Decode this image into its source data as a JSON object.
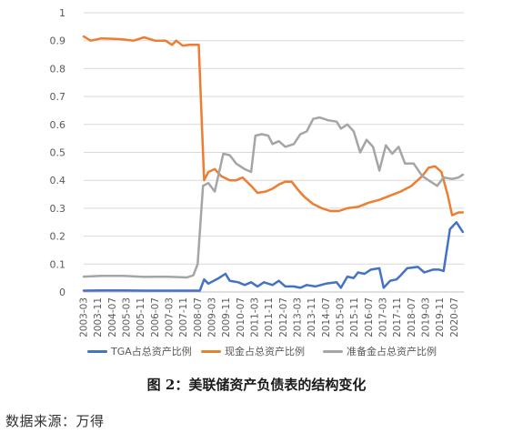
{
  "chart_data": {
    "type": "line",
    "title": "",
    "xlabel": "",
    "ylabel": "",
    "ylim": [
      0,
      1
    ],
    "yticks": [
      "0",
      "0.1",
      "0.2",
      "0.3",
      "0.4",
      "0.5",
      "0.6",
      "0.7",
      "0.8",
      "0.9",
      "1"
    ],
    "grid": true,
    "legend_position": "bottom",
    "x_tick_labels": [
      "2003-03",
      "2003-11",
      "2004-07",
      "2005-03",
      "2005-11",
      "2006-07",
      "2007-03",
      "2007-11",
      "2008-07",
      "2009-03",
      "2009-11",
      "2010-07",
      "2011-03",
      "2011-11",
      "2012-07",
      "2013-03",
      "2013-11",
      "2014-07",
      "2015-03",
      "2015-11",
      "2016-07",
      "2017-03",
      "2017-11",
      "2018-07",
      "2019-03",
      "2019-11",
      "2020-07"
    ],
    "series": [
      {
        "name": "TGA占总资产比例",
        "color": "#4472C4",
        "points": [
          [
            2003.17,
            0.005
          ],
          [
            2004.0,
            0.006
          ],
          [
            2005.0,
            0.006
          ],
          [
            2006.0,
            0.005
          ],
          [
            2007.0,
            0.005
          ],
          [
            2008.0,
            0.005
          ],
          [
            2008.6,
            0.005
          ],
          [
            2008.8,
            0.045
          ],
          [
            2009.0,
            0.03
          ],
          [
            2009.5,
            0.05
          ],
          [
            2009.8,
            0.065
          ],
          [
            2010.0,
            0.04
          ],
          [
            2010.4,
            0.035
          ],
          [
            2010.7,
            0.025
          ],
          [
            2011.0,
            0.035
          ],
          [
            2011.3,
            0.02
          ],
          [
            2011.6,
            0.035
          ],
          [
            2012.0,
            0.025
          ],
          [
            2012.3,
            0.04
          ],
          [
            2012.6,
            0.02
          ],
          [
            2013.0,
            0.02
          ],
          [
            2013.3,
            0.015
          ],
          [
            2013.6,
            0.025
          ],
          [
            2014.0,
            0.02
          ],
          [
            2014.5,
            0.03
          ],
          [
            2015.0,
            0.035
          ],
          [
            2015.2,
            0.015
          ],
          [
            2015.5,
            0.055
          ],
          [
            2015.8,
            0.05
          ],
          [
            2016.0,
            0.07
          ],
          [
            2016.3,
            0.065
          ],
          [
            2016.6,
            0.08
          ],
          [
            2017.0,
            0.085
          ],
          [
            2017.2,
            0.015
          ],
          [
            2017.5,
            0.04
          ],
          [
            2017.8,
            0.045
          ],
          [
            2018.0,
            0.06
          ],
          [
            2018.3,
            0.085
          ],
          [
            2018.8,
            0.09
          ],
          [
            2019.1,
            0.07
          ],
          [
            2019.5,
            0.08
          ],
          [
            2019.8,
            0.08
          ],
          [
            2020.0,
            0.075
          ],
          [
            2020.3,
            0.225
          ],
          [
            2020.6,
            0.25
          ],
          [
            2020.9,
            0.215
          ]
        ]
      },
      {
        "name": "现金占总资产比例",
        "color": "#ED7D31",
        "points": [
          [
            2003.17,
            0.915
          ],
          [
            2003.5,
            0.9
          ],
          [
            2004.0,
            0.908
          ],
          [
            2004.5,
            0.907
          ],
          [
            2005.0,
            0.905
          ],
          [
            2005.5,
            0.9
          ],
          [
            2006.0,
            0.912
          ],
          [
            2006.5,
            0.9
          ],
          [
            2007.0,
            0.9
          ],
          [
            2007.3,
            0.885
          ],
          [
            2007.5,
            0.9
          ],
          [
            2007.8,
            0.882
          ],
          [
            2008.1,
            0.885
          ],
          [
            2008.55,
            0.885
          ],
          [
            2008.8,
            0.4
          ],
          [
            2009.0,
            0.43
          ],
          [
            2009.3,
            0.44
          ],
          [
            2009.6,
            0.415
          ],
          [
            2010.0,
            0.4
          ],
          [
            2010.3,
            0.4
          ],
          [
            2010.6,
            0.41
          ],
          [
            2011.0,
            0.38
          ],
          [
            2011.3,
            0.355
          ],
          [
            2011.7,
            0.36
          ],
          [
            2012.0,
            0.37
          ],
          [
            2012.3,
            0.385
          ],
          [
            2012.6,
            0.395
          ],
          [
            2012.9,
            0.395
          ],
          [
            2013.2,
            0.365
          ],
          [
            2013.5,
            0.34
          ],
          [
            2013.9,
            0.315
          ],
          [
            2014.3,
            0.3
          ],
          [
            2014.7,
            0.29
          ],
          [
            2015.1,
            0.29
          ],
          [
            2015.5,
            0.3
          ],
          [
            2016.0,
            0.305
          ],
          [
            2016.5,
            0.32
          ],
          [
            2017.0,
            0.33
          ],
          [
            2017.5,
            0.345
          ],
          [
            2018.0,
            0.36
          ],
          [
            2018.5,
            0.38
          ],
          [
            2019.0,
            0.415
          ],
          [
            2019.3,
            0.445
          ],
          [
            2019.6,
            0.45
          ],
          [
            2019.9,
            0.43
          ],
          [
            2020.2,
            0.345
          ],
          [
            2020.4,
            0.275
          ],
          [
            2020.7,
            0.285
          ],
          [
            2020.9,
            0.285
          ]
        ]
      },
      {
        "name": "准备金占总资产比例",
        "color": "#A5A5A5",
        "points": [
          [
            2003.17,
            0.055
          ],
          [
            2004.0,
            0.058
          ],
          [
            2005.0,
            0.058
          ],
          [
            2006.0,
            0.054
          ],
          [
            2007.0,
            0.055
          ],
          [
            2008.0,
            0.052
          ],
          [
            2008.3,
            0.06
          ],
          [
            2008.5,
            0.1
          ],
          [
            2008.75,
            0.38
          ],
          [
            2009.0,
            0.39
          ],
          [
            2009.3,
            0.36
          ],
          [
            2009.7,
            0.495
          ],
          [
            2010.0,
            0.49
          ],
          [
            2010.3,
            0.46
          ],
          [
            2010.7,
            0.44
          ],
          [
            2011.0,
            0.43
          ],
          [
            2011.2,
            0.56
          ],
          [
            2011.5,
            0.565
          ],
          [
            2011.8,
            0.56
          ],
          [
            2012.0,
            0.53
          ],
          [
            2012.3,
            0.54
          ],
          [
            2012.6,
            0.52
          ],
          [
            2013.0,
            0.53
          ],
          [
            2013.3,
            0.565
          ],
          [
            2013.6,
            0.575
          ],
          [
            2013.9,
            0.62
          ],
          [
            2014.2,
            0.625
          ],
          [
            2014.6,
            0.615
          ],
          [
            2015.0,
            0.61
          ],
          [
            2015.2,
            0.585
          ],
          [
            2015.5,
            0.6
          ],
          [
            2015.8,
            0.575
          ],
          [
            2016.1,
            0.5
          ],
          [
            2016.4,
            0.545
          ],
          [
            2016.7,
            0.52
          ],
          [
            2017.0,
            0.435
          ],
          [
            2017.3,
            0.525
          ],
          [
            2017.6,
            0.495
          ],
          [
            2017.9,
            0.52
          ],
          [
            2018.2,
            0.46
          ],
          [
            2018.6,
            0.46
          ],
          [
            2019.0,
            0.415
          ],
          [
            2019.3,
            0.4
          ],
          [
            2019.7,
            0.38
          ],
          [
            2020.0,
            0.41
          ],
          [
            2020.4,
            0.405
          ],
          [
            2020.7,
            0.41
          ],
          [
            2020.9,
            0.42
          ]
        ]
      }
    ]
  },
  "caption": "图 2：美联储资产负债表的结构变化",
  "source": "数据来源：万得"
}
